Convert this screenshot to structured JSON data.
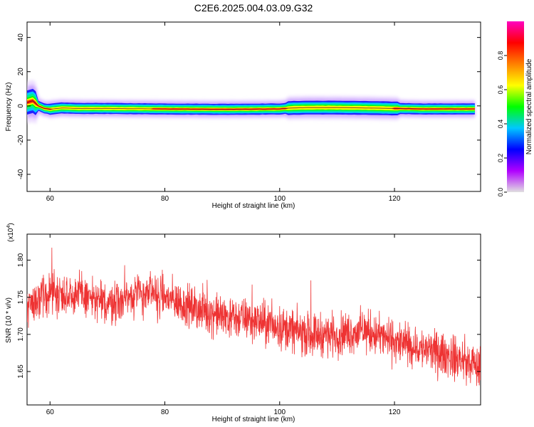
{
  "title": "C2E6.2025.004.03.09.G32",
  "colorbar": {
    "label": "Normalized spectral amplitude",
    "range": [
      0,
      1
    ],
    "ticks": [
      "0.0",
      "0.2",
      "0.4",
      "0.6",
      "0.8"
    ],
    "tick_values": [
      0,
      0.2,
      0.4,
      0.6,
      0.8
    ]
  },
  "chart_data": [
    {
      "type": "heatmap",
      "xlabel": "Height of straight line (km)",
      "ylabel": "Frequency (Hz)",
      "xlim": [
        56,
        135
      ],
      "ylim": [
        -50,
        49
      ],
      "x_ticks": [
        "60",
        "80",
        "100",
        "120"
      ],
      "x_tick_values": [
        60,
        80,
        100,
        120
      ],
      "y_ticks": [
        "40",
        "20",
        "0",
        "-20",
        "-40"
      ],
      "y_tick_values": [
        40,
        20,
        0,
        -20,
        -40
      ],
      "ridge": {
        "x": [
          56,
          57,
          58,
          59,
          60,
          62,
          65,
          70,
          80,
          90,
          100,
          102,
          105,
          110,
          115,
          120,
          125,
          130,
          134
        ],
        "freq": [
          2,
          3,
          0,
          -1.5,
          -2,
          -1.2,
          -1.5,
          -1.5,
          -1.8,
          -2,
          -1.8,
          -1.2,
          -1,
          -1,
          -1.2,
          -1.5,
          -1.8,
          -1.8,
          -1.8
        ]
      },
      "colormap": [
        "#e0e0e0",
        "#b000ff",
        "#0000ff",
        "#00c8ff",
        "#00ff00",
        "#ffff00",
        "#ff8000",
        "#ff0000",
        "#ff00c0"
      ]
    },
    {
      "type": "line",
      "xlabel": "Height of straight line (km)",
      "ylabel": "SNR (10 * v/v)",
      "y_multiplier_label": "(x10",
      "y_multiplier_exp": "4",
      "xlim": [
        56,
        135
      ],
      "ylim": [
        1.605,
        1.835
      ],
      "x_ticks": [
        "60",
        "80",
        "100",
        "120"
      ],
      "x_tick_values": [
        60,
        80,
        100,
        120
      ],
      "y_ticks": [
        "1.80",
        "1.75",
        "1.70",
        "1.65"
      ],
      "y_tick_values": [
        1.8,
        1.75,
        1.7,
        1.65
      ],
      "series": [
        {
          "color": "#ee3333",
          "x": [
            56,
            60,
            65,
            70,
            75,
            80,
            85,
            90,
            95,
            100,
            105,
            110,
            115,
            120,
            125,
            130,
            135
          ],
          "y": [
            1.74,
            1.755,
            1.755,
            1.74,
            1.755,
            1.75,
            1.735,
            1.725,
            1.72,
            1.71,
            1.7,
            1.7,
            1.705,
            1.69,
            1.68,
            1.67,
            1.655
          ]
        }
      ]
    }
  ]
}
